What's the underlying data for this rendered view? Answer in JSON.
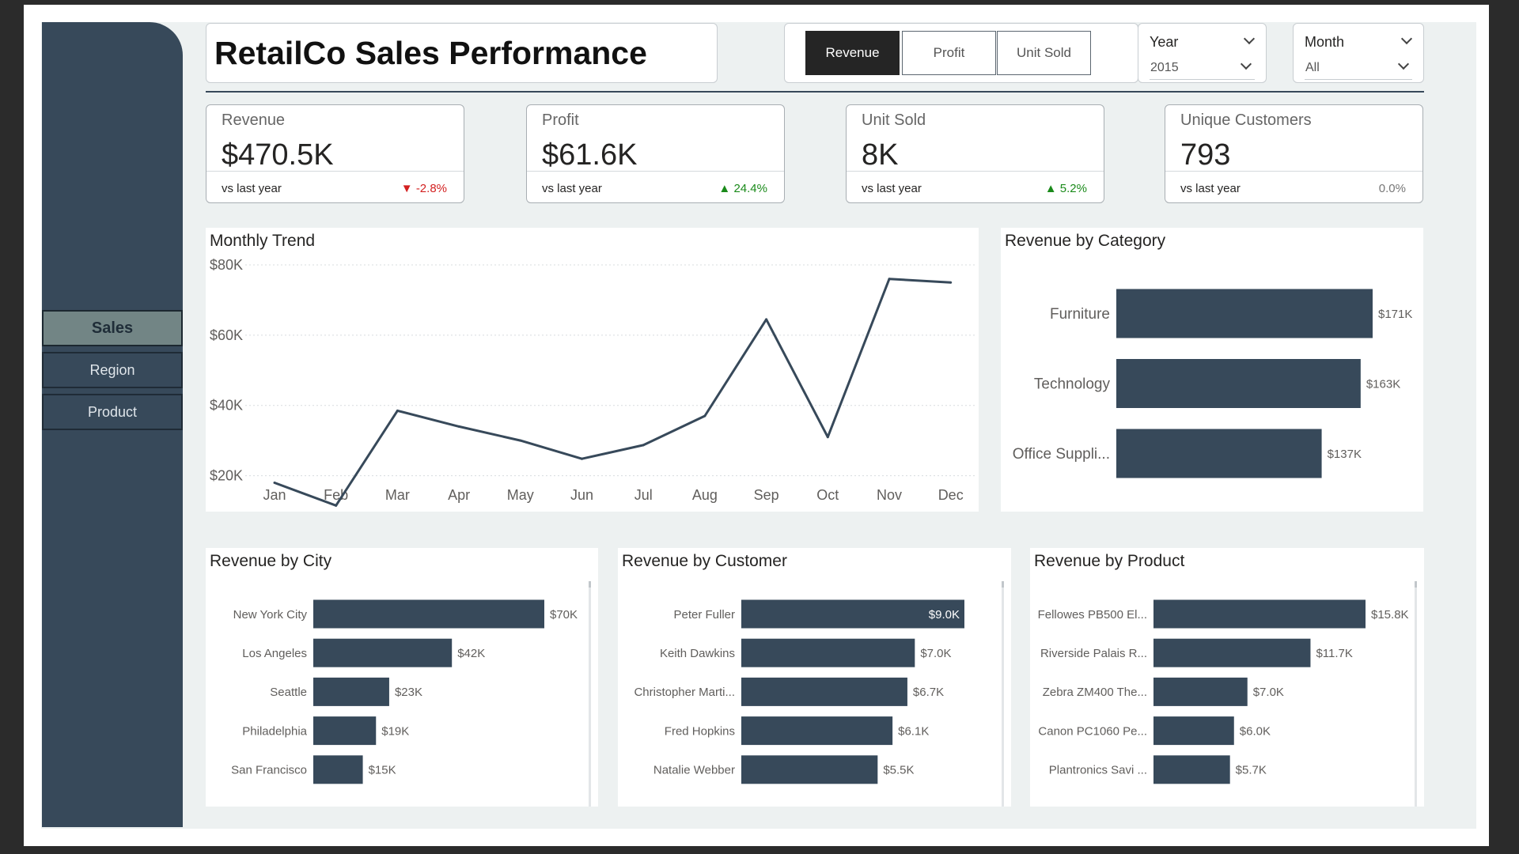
{
  "header": {
    "title": "RetailCo Sales Performance"
  },
  "sidebar": {
    "items": [
      {
        "label": "Sales"
      },
      {
        "label": "Region"
      },
      {
        "label": "Product"
      }
    ]
  },
  "metric_toggle": {
    "options": [
      {
        "label": "Revenue"
      },
      {
        "label": "Profit"
      },
      {
        "label": "Unit Sold"
      }
    ],
    "selected": "Revenue"
  },
  "filters": {
    "year": {
      "title": "Year",
      "value": "2015"
    },
    "month": {
      "title": "Month",
      "value": "All"
    }
  },
  "kpis": [
    {
      "label": "Revenue",
      "value": "$470.5K",
      "footer": "vs last year",
      "delta": "-2.8%",
      "trend": "down"
    },
    {
      "label": "Profit",
      "value": "$61.6K",
      "footer": "vs last year",
      "delta": "24.4%",
      "trend": "up"
    },
    {
      "label": "Unit Sold",
      "value": "8K",
      "footer": "vs last year",
      "delta": "5.2%",
      "trend": "up"
    },
    {
      "label": "Unique Customers",
      "value": "793",
      "footer": "vs last year",
      "delta": "0.0%",
      "trend": "flat"
    }
  ],
  "colors": {
    "bar": "#37495a",
    "line": "#37495a",
    "sidebar": "#37495a",
    "negative": "#d32020",
    "positive": "#1a8a1a"
  },
  "chart_data": [
    {
      "id": "monthly",
      "type": "line",
      "title": "Monthly Trend",
      "categories": [
        "Jan",
        "Feb",
        "Mar",
        "Apr",
        "May",
        "Jun",
        "Jul",
        "Aug",
        "Sep",
        "Oct",
        "Nov",
        "Dec"
      ],
      "values": [
        18000,
        11500,
        38500,
        34000,
        30000,
        24800,
        28700,
        37000,
        64500,
        31000,
        76000,
        75000
      ],
      "yticks": [
        20000,
        40000,
        60000,
        80000
      ],
      "ytick_labels": [
        "$20K",
        "$40K",
        "$60K",
        "$80K"
      ],
      "ylim": [
        10000,
        80000
      ],
      "grid": true
    },
    {
      "id": "category",
      "type": "bar",
      "title": "Revenue by Category",
      "categories": [
        "Furniture",
        "Technology",
        "Office Suppli..."
      ],
      "values": [
        171,
        163,
        137
      ],
      "labels": [
        "$171K",
        "$163K",
        "$137K"
      ],
      "xlim": [
        0,
        171
      ]
    },
    {
      "id": "city",
      "type": "bar",
      "title": "Revenue by City",
      "categories": [
        "New York City",
        "Los Angeles",
        "Seattle",
        "Philadelphia",
        "San Francisco"
      ],
      "values": [
        70,
        42,
        23,
        19,
        15
      ],
      "labels": [
        "$70K",
        "$42K",
        "$23K",
        "$19K",
        "$15K"
      ],
      "xlim": [
        0,
        70
      ]
    },
    {
      "id": "customer",
      "type": "bar",
      "title": "Revenue by Customer",
      "categories": [
        "Peter Fuller",
        "Keith Dawkins",
        "Christopher Marti...",
        "Fred Hopkins",
        "Natalie Webber"
      ],
      "values": [
        9.0,
        7.0,
        6.7,
        6.1,
        5.5
      ],
      "labels": [
        "$9.0K",
        "$7.0K",
        "$6.7K",
        "$6.1K",
        "$5.5K"
      ],
      "xlim": [
        0,
        9.0
      ]
    },
    {
      "id": "product",
      "type": "bar",
      "title": "Revenue by Product",
      "categories": [
        "Fellowes PB500 El...",
        "Riverside Palais R...",
        "Zebra ZM400 The...",
        "Canon PC1060 Pe...",
        "Plantronics Savi ..."
      ],
      "values": [
        15.8,
        11.7,
        7.0,
        6.0,
        5.7
      ],
      "labels": [
        "$15.8K",
        "$11.7K",
        "$7.0K",
        "$6.0K",
        "$5.7K"
      ],
      "xlim": [
        0,
        15.8
      ]
    }
  ]
}
